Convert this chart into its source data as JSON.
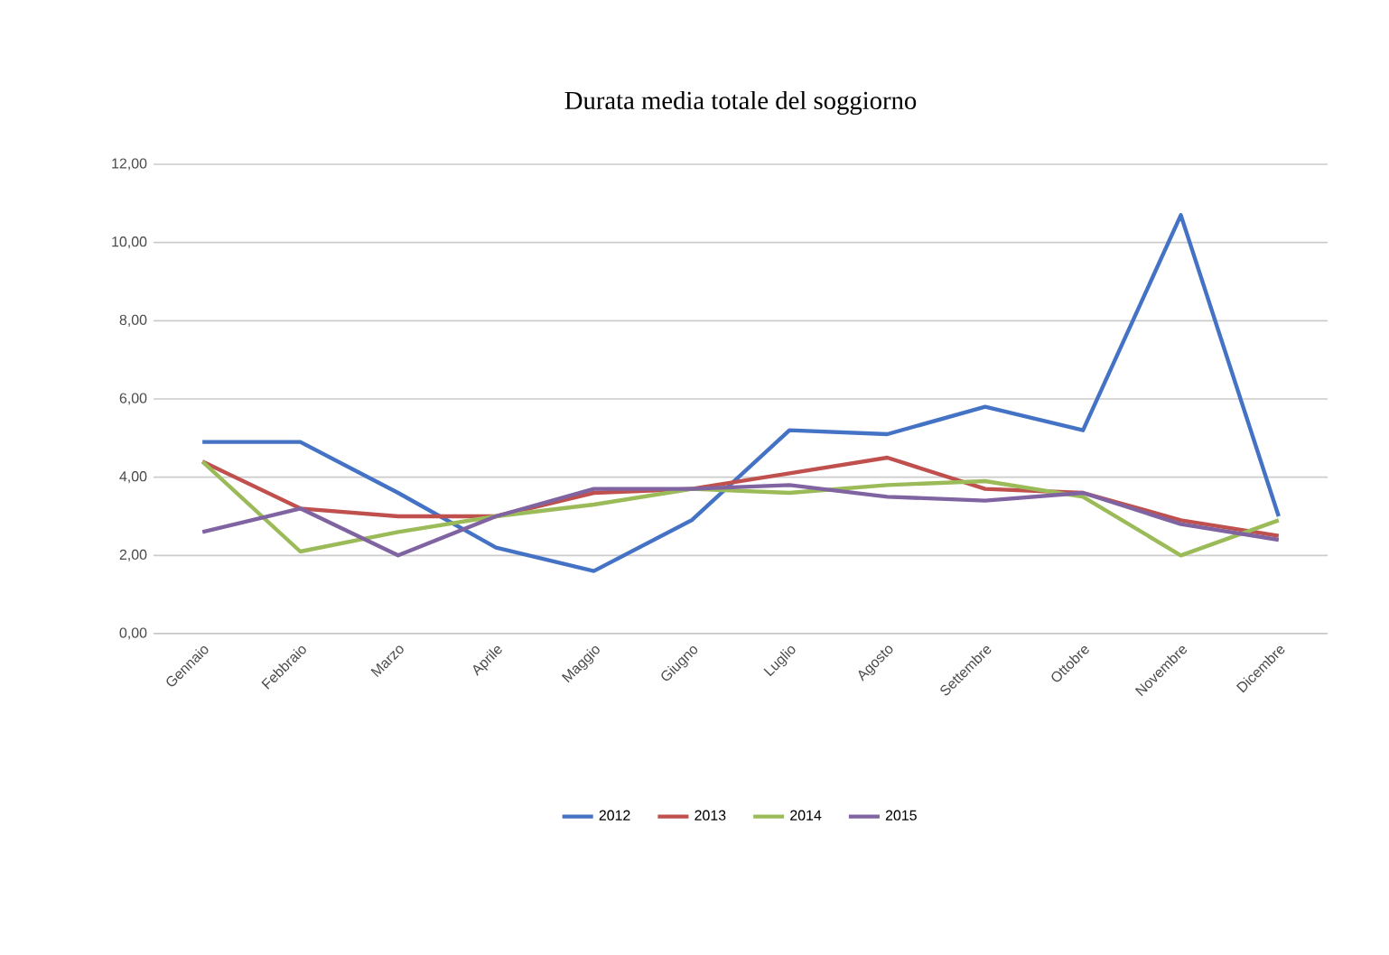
{
  "chart_data": {
    "type": "line",
    "title": "Durata media totale del soggiorno",
    "categories": [
      "Gennaio",
      "Febbraio",
      "Marzo",
      "Aprile",
      "Maggio",
      "Giugno",
      "Luglio",
      "Agosto",
      "Settembre",
      "Ottobre",
      "Novembre",
      "Dicembre"
    ],
    "series": [
      {
        "name": "2012",
        "color": "#4472c4",
        "values": [
          4.9,
          4.9,
          3.6,
          2.2,
          1.6,
          2.9,
          5.2,
          5.1,
          5.8,
          5.2,
          10.7,
          3.0
        ]
      },
      {
        "name": "2013",
        "color": "#c0504d",
        "values": [
          4.4,
          3.2,
          3.0,
          3.0,
          3.6,
          3.7,
          4.1,
          4.5,
          3.7,
          3.6,
          2.9,
          2.5
        ]
      },
      {
        "name": "2014",
        "color": "#9bbb59",
        "values": [
          4.4,
          2.1,
          2.6,
          3.0,
          3.3,
          3.7,
          3.6,
          3.8,
          3.9,
          3.5,
          2.0,
          2.9
        ]
      },
      {
        "name": "2015",
        "color": "#8064a2",
        "values": [
          2.6,
          3.2,
          2.0,
          3.0,
          3.7,
          3.7,
          3.8,
          3.5,
          3.4,
          3.6,
          2.8,
          2.4
        ]
      }
    ],
    "ylim": [
      0,
      12
    ],
    "yticks": [
      {
        "value": 0,
        "label": "0,00"
      },
      {
        "value": 2,
        "label": "2,00"
      },
      {
        "value": 4,
        "label": "4,00"
      },
      {
        "value": 6,
        "label": "6,00"
      },
      {
        "value": 8,
        "label": "8,00"
      },
      {
        "value": 10,
        "label": "10,00"
      },
      {
        "value": 12,
        "label": "12,00"
      }
    ],
    "grid": "y",
    "legend": "bottom",
    "marker": "none",
    "line_style": "solid"
  }
}
